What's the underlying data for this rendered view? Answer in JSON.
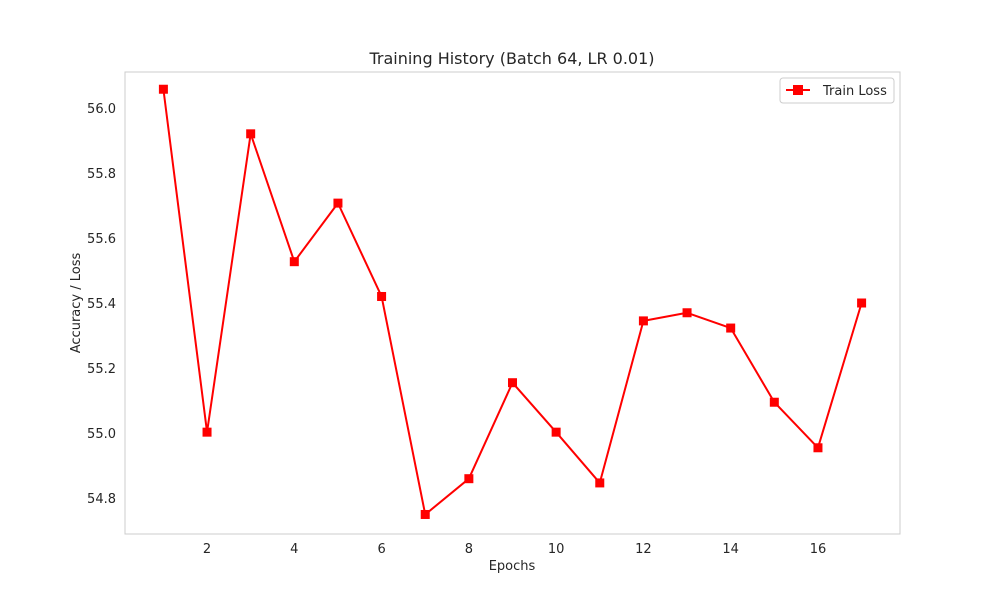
{
  "chart_data": {
    "type": "line",
    "title": "Training History (Batch 64, LR 0.01)",
    "xlabel": "Epochs",
    "ylabel": "Accuracy / Loss",
    "x": [
      1,
      2,
      3,
      4,
      5,
      6,
      7,
      8,
      9,
      10,
      11,
      12,
      13,
      14,
      15,
      16,
      17
    ],
    "xlim": [
      0.12,
      17.88
    ],
    "ylim": [
      54.69,
      56.11
    ],
    "xticks": [
      2,
      4,
      6,
      8,
      10,
      12,
      14,
      16
    ],
    "yticks": [
      54.8,
      55.0,
      55.2,
      55.4,
      55.6,
      55.8,
      56.0
    ],
    "grid": false,
    "legend_position": "top-right",
    "series": [
      {
        "name": "Train Loss",
        "color": "#ff0000",
        "marker": "square",
        "values": [
          56.057,
          55.003,
          55.92,
          55.527,
          55.707,
          55.42,
          54.75,
          54.86,
          55.155,
          55.003,
          54.847,
          55.345,
          55.37,
          55.323,
          55.095,
          54.955,
          55.4
        ]
      }
    ]
  }
}
